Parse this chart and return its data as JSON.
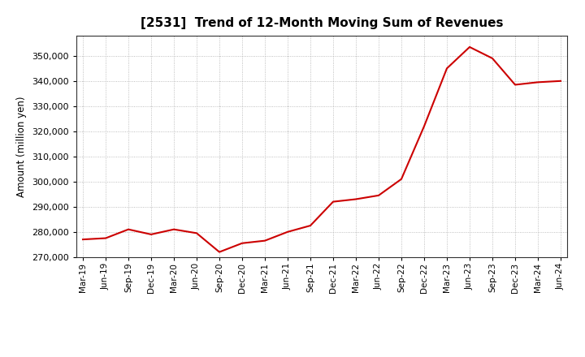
{
  "title": "[2531]  Trend of 12-Month Moving Sum of Revenues",
  "ylabel": "Amount (million yen)",
  "line_color": "#cc0000",
  "line_width": 1.5,
  "background_color": "#ffffff",
  "plot_bg_color": "#ffffff",
  "grid_color": "#999999",
  "ylim": [
    270000,
    358000
  ],
  "yticks": [
    270000,
    280000,
    290000,
    300000,
    310000,
    320000,
    330000,
    340000,
    350000
  ],
  "x_labels": [
    "Mar-19",
    "Jun-19",
    "Sep-19",
    "Dec-19",
    "Mar-20",
    "Jun-20",
    "Sep-20",
    "Dec-20",
    "Mar-21",
    "Jun-21",
    "Sep-21",
    "Dec-21",
    "Mar-22",
    "Jun-22",
    "Sep-22",
    "Dec-22",
    "Mar-23",
    "Jun-23",
    "Sep-23",
    "Dec-23",
    "Mar-24",
    "Jun-24"
  ],
  "values": [
    277000,
    277500,
    281000,
    279000,
    281000,
    279500,
    272000,
    275500,
    276500,
    280000,
    282500,
    292000,
    293000,
    294500,
    301000,
    322000,
    345000,
    353500,
    349000,
    338500,
    339500,
    340000
  ]
}
